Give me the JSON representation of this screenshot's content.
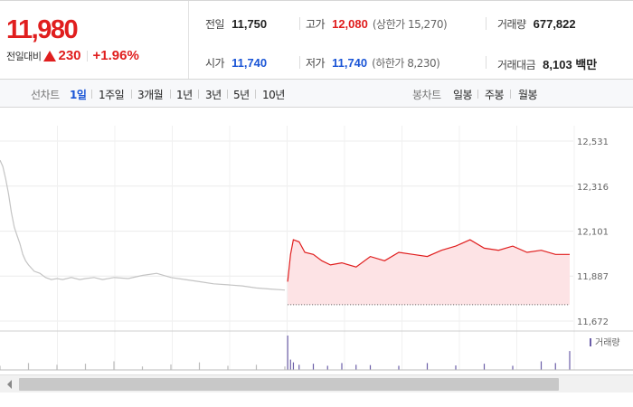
{
  "quote": {
    "price": "11,980",
    "change_label": "전일대비",
    "change_amount": "230",
    "change_percent": "+1.96%"
  },
  "stats": {
    "prev_close_label": "전일",
    "prev_close": "11,750",
    "high_label": "고가",
    "high": "12,080",
    "upper_limit_label": "(상한가 15,270)",
    "volume_label": "거래량",
    "volume": "677,822",
    "open_label": "시가",
    "open": "11,740",
    "low_label": "저가",
    "low": "11,740",
    "lower_limit_label": "(하한가 8,230)",
    "trade_value_label": "거래대금",
    "trade_value": "8,103 백만"
  },
  "toolbar": {
    "line_label": "선차트",
    "line_periods": [
      "1일",
      "1주일",
      "3개월",
      "1년",
      "3년",
      "5년",
      "10년"
    ],
    "active_period": "1일",
    "candle_label": "봉차트",
    "candle_periods": [
      "일봉",
      "주봉",
      "월봉"
    ]
  },
  "colors": {
    "up": "#e01e1e",
    "down": "#1a55d6",
    "past_line": "#c4c4c4",
    "volume": "#6b5ea8",
    "fill": "#fde3e5"
  },
  "chart_data": {
    "type": "line",
    "title": "",
    "xlabel": "",
    "ylabel": "",
    "y_ticks": [
      "12,531",
      "12,316",
      "12,101",
      "11,887",
      "11,672"
    ],
    "ylim": [
      11672,
      12531
    ],
    "grid": true,
    "volume_legend": "거래량",
    "series": [
      {
        "x": [
          0,
          1,
          2,
          3,
          4,
          5,
          6,
          7,
          8,
          9,
          10,
          12,
          14,
          16,
          18,
          20,
          22,
          25,
          28,
          30,
          33,
          36,
          40,
          45,
          50,
          55,
          60,
          65,
          70,
          75,
          80,
          85,
          90,
          95,
          100
        ],
        "values": [
          12440,
          12410,
          12350,
          12280,
          12190,
          12120,
          12080,
          12040,
          11990,
          11960,
          11940,
          11910,
          11900,
          11880,
          11870,
          11875,
          11870,
          11880,
          11870,
          11875,
          11880,
          11870,
          11880,
          11875,
          11890,
          11900,
          11880,
          11870,
          11860,
          11850,
          11845,
          11840,
          11830,
          11825,
          11820
        ]
      },
      {
        "x": [
          101,
          102,
          103,
          105,
          107,
          110,
          113,
          116,
          120,
          125,
          130,
          135,
          140,
          145,
          150,
          155,
          160,
          165,
          170,
          175,
          180,
          185,
          190,
          195,
          200
        ],
        "values": [
          11860,
          11990,
          12060,
          12050,
          12000,
          11990,
          11960,
          11940,
          11950,
          11930,
          11980,
          11960,
          12000,
          11990,
          11980,
          12010,
          12030,
          12060,
          12020,
          12010,
          12030,
          12000,
          12010,
          11990,
          11990
        ]
      }
    ],
    "reference_value": 11750,
    "volume": {
      "x": [
        0,
        10,
        20,
        30,
        40,
        50,
        60,
        70,
        80,
        90,
        100,
        101,
        102,
        103,
        105,
        110,
        115,
        120,
        125,
        130,
        140,
        150,
        160,
        170,
        180,
        190,
        195,
        200
      ],
      "values": [
        0.12,
        0.2,
        0.15,
        0.18,
        0.25,
        0.1,
        0.16,
        0.22,
        0.12,
        0.15,
        0.1,
        1.0,
        0.3,
        0.22,
        0.15,
        0.18,
        0.12,
        0.2,
        0.15,
        0.14,
        0.12,
        0.2,
        0.13,
        0.18,
        0.12,
        0.25,
        0.2,
        0.55
      ]
    }
  }
}
